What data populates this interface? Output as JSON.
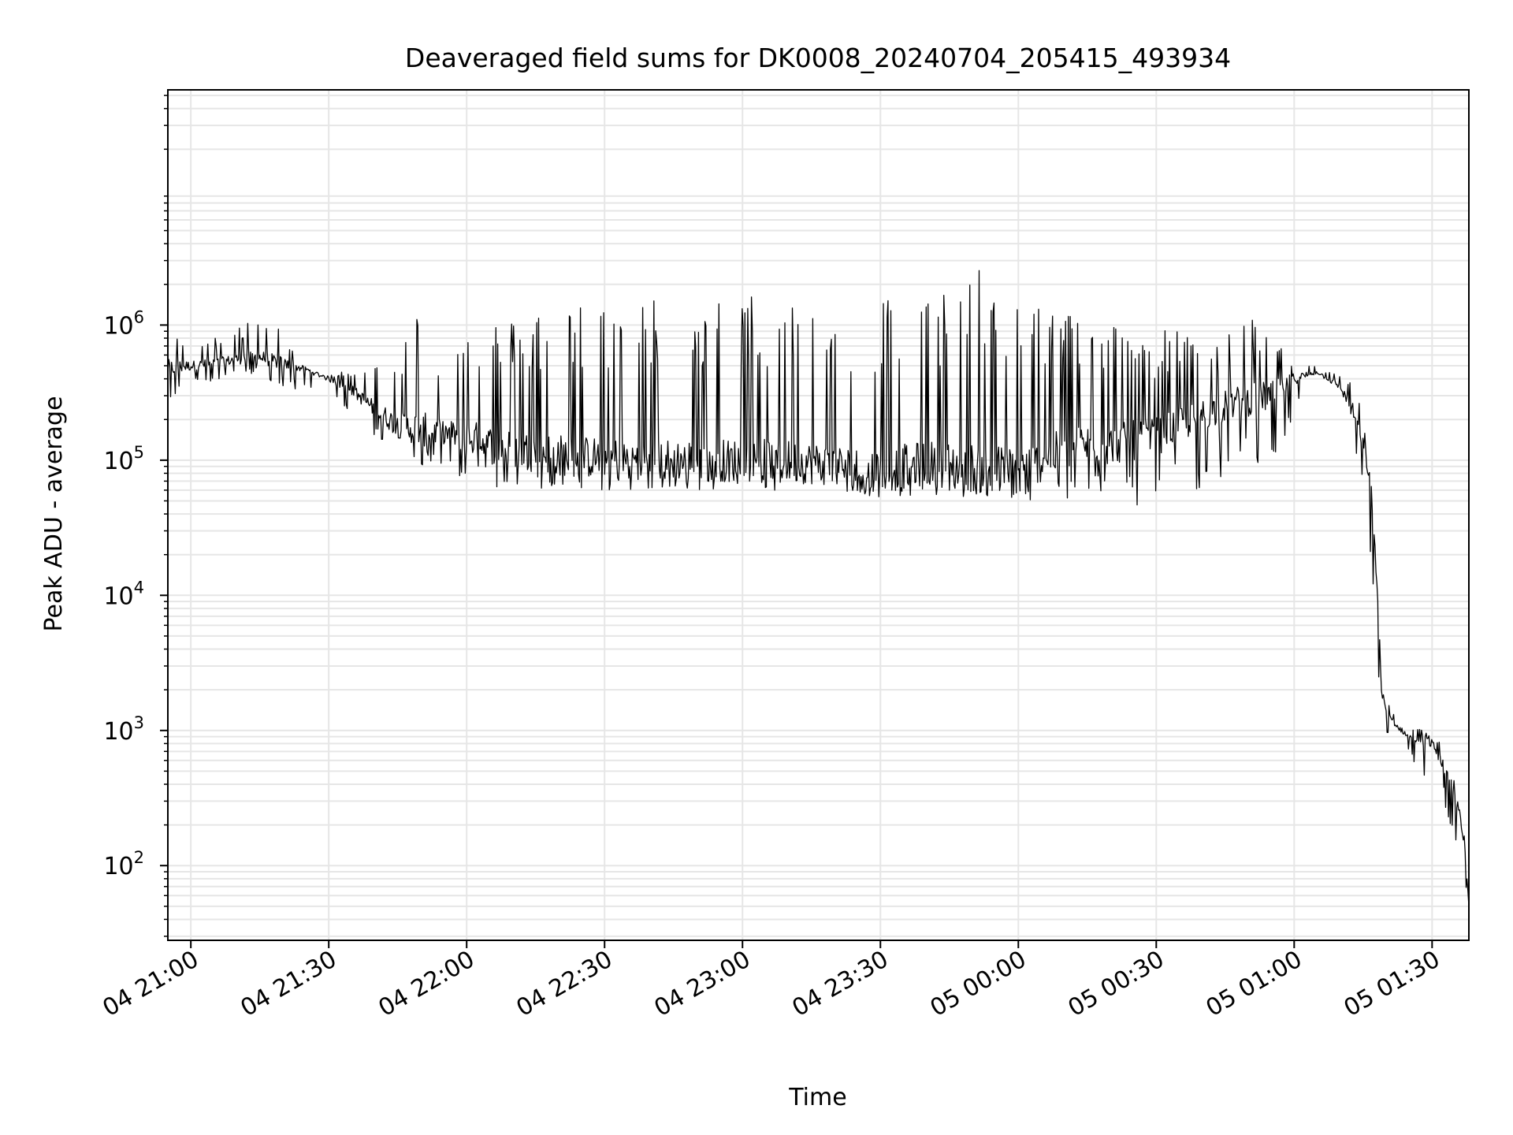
{
  "chart_data": {
    "type": "line",
    "title": "Deaveraged field sums for DK0008_20240704_205415_493934",
    "xlabel": "Time",
    "ylabel": "Peak ADU - average",
    "yscale": "log",
    "ylim": [
      28,
      55000000
    ],
    "xlim": [
      "2024-07-04T20:55",
      "2024-07-05T01:38"
    ],
    "grid": true,
    "line_color": "#000000",
    "x_ticks": [
      {
        "time": "2024-07-04T21:00",
        "label": "04 21:00"
      },
      {
        "time": "2024-07-04T21:30",
        "label": "04 21:30"
      },
      {
        "time": "2024-07-04T22:00",
        "label": "04 22:00"
      },
      {
        "time": "2024-07-04T22:30",
        "label": "04 22:30"
      },
      {
        "time": "2024-07-04T23:00",
        "label": "04 23:00"
      },
      {
        "time": "2024-07-04T23:30",
        "label": "04 23:30"
      },
      {
        "time": "2024-07-05T00:00",
        "label": "05 00:00"
      },
      {
        "time": "2024-07-05T00:30",
        "label": "05 00:30"
      },
      {
        "time": "2024-07-05T01:00",
        "label": "05 01:00"
      },
      {
        "time": "2024-07-05T01:30",
        "label": "05 01:30"
      }
    ],
    "y_ticks": [
      {
        "value": 100,
        "base": "10",
        "exp": "2"
      },
      {
        "value": 1000,
        "base": "10",
        "exp": "3"
      },
      {
        "value": 10000,
        "base": "10",
        "exp": "4"
      },
      {
        "value": 100000,
        "base": "10",
        "exp": "5"
      },
      {
        "value": 1000000,
        "base": "10",
        "exp": "6"
      }
    ],
    "series": [
      {
        "x": [
          "2024-07-04T20:55",
          "2024-07-04T21:00",
          "2024-07-04T21:05",
          "2024-07-04T21:10",
          "2024-07-04T21:15",
          "2024-07-04T21:20",
          "2024-07-04T21:25",
          "2024-07-04T21:30",
          "2024-07-04T21:35",
          "2024-07-04T21:40",
          "2024-07-04T21:45",
          "2024-07-04T21:50",
          "2024-07-04T21:55",
          "2024-07-04T22:00",
          "2024-07-04T22:05",
          "2024-07-04T22:10",
          "2024-07-04T22:15",
          "2024-07-04T22:20",
          "2024-07-04T22:25",
          "2024-07-04T22:30",
          "2024-07-04T22:35",
          "2024-07-04T22:40",
          "2024-07-04T22:45",
          "2024-07-04T22:50",
          "2024-07-04T22:55",
          "2024-07-04T23:00",
          "2024-07-04T23:05",
          "2024-07-04T23:10",
          "2024-07-04T23:15",
          "2024-07-04T23:20",
          "2024-07-04T23:25",
          "2024-07-04T23:30",
          "2024-07-04T23:35",
          "2024-07-04T23:40",
          "2024-07-04T23:45",
          "2024-07-04T23:50",
          "2024-07-04T23:55",
          "2024-07-05T00:00",
          "2024-07-05T00:05",
          "2024-07-05T00:10",
          "2024-07-05T00:15",
          "2024-07-05T00:20",
          "2024-07-05T00:25",
          "2024-07-05T00:30",
          "2024-07-05T00:35",
          "2024-07-05T00:40",
          "2024-07-05T00:45",
          "2024-07-05T00:50",
          "2024-07-05T00:55",
          "2024-07-05T01:00",
          "2024-07-05T01:05",
          "2024-07-05T01:10",
          "2024-07-05T01:13",
          "2024-07-05T01:15",
          "2024-07-05T01:16",
          "2024-07-05T01:17",
          "2024-07-05T01:18",
          "2024-07-05T01:19",
          "2024-07-05T01:20",
          "2024-07-05T01:22",
          "2024-07-05T01:25",
          "2024-07-05T01:28",
          "2024-07-05T01:30",
          "2024-07-05T01:32",
          "2024-07-05T01:34",
          "2024-07-05T01:36",
          "2024-07-05T01:37",
          "2024-07-05T01:38"
        ],
        "y": [
          480000,
          500000,
          520000,
          560000,
          580000,
          520000,
          470000,
          400000,
          330000,
          240000,
          180000,
          170000,
          160000,
          150000,
          130000,
          120000,
          115000,
          110000,
          105000,
          105000,
          100000,
          100000,
          100000,
          100000,
          100000,
          100000,
          100000,
          98000,
          95000,
          92000,
          85000,
          82000,
          90000,
          95000,
          92000,
          88000,
          85000,
          82000,
          100000,
          120000,
          130000,
          130000,
          140000,
          150000,
          180000,
          220000,
          250000,
          280000,
          300000,
          400000,
          450000,
          350000,
          220000,
          130000,
          90000,
          50000,
          12000,
          2000,
          1400,
          1100,
          900,
          850,
          800,
          600,
          400,
          250,
          150,
          50
        ],
        "envelope_high": [
          1100000,
          700000,
          800000,
          950000,
          1200000,
          1000000,
          450000,
          420000,
          500000,
          500000,
          650000,
          1500000,
          500000,
          1000000,
          1200000,
          1100000,
          1400000,
          1500000,
          1550000,
          1550000,
          1600000,
          1650000,
          1700000,
          1600000,
          1600000,
          1750000,
          1700000,
          1650000,
          1650000,
          1600000,
          1700000,
          1800000,
          1800000,
          1900000,
          2000000,
          2500000,
          2800000,
          1800000,
          1500000,
          1400000,
          1200000,
          1100000,
          1000000,
          900000,
          1000000,
          700000,
          800000,
          1200000,
          1000000,
          500000,
          500000,
          420000,
          400000,
          200000,
          120000,
          40000,
          15000,
          2000,
          1700,
          1300,
          1100,
          1000,
          950,
          800,
          600,
          300,
          200,
          60
        ],
        "envelope_low": [
          280000,
          330000,
          380000,
          420000,
          420000,
          350000,
          300000,
          280000,
          220000,
          130000,
          100000,
          90000,
          85000,
          65000,
          60000,
          60000,
          60000,
          60000,
          60000,
          60000,
          60000,
          60000,
          60000,
          60000,
          60000,
          60000,
          60000,
          60000,
          60000,
          60000,
          55000,
          50000,
          55000,
          55000,
          55000,
          52000,
          50000,
          48000,
          50000,
          50000,
          50000,
          48000,
          45000,
          45000,
          60000,
          60000,
          60000,
          90000,
          100000,
          200000,
          380000,
          250000,
          100000,
          70000,
          30000,
          12000,
          2000,
          1000,
          950,
          900,
          700,
          400,
          500,
          350,
          200,
          120,
          80,
          45
        ]
      }
    ]
  }
}
